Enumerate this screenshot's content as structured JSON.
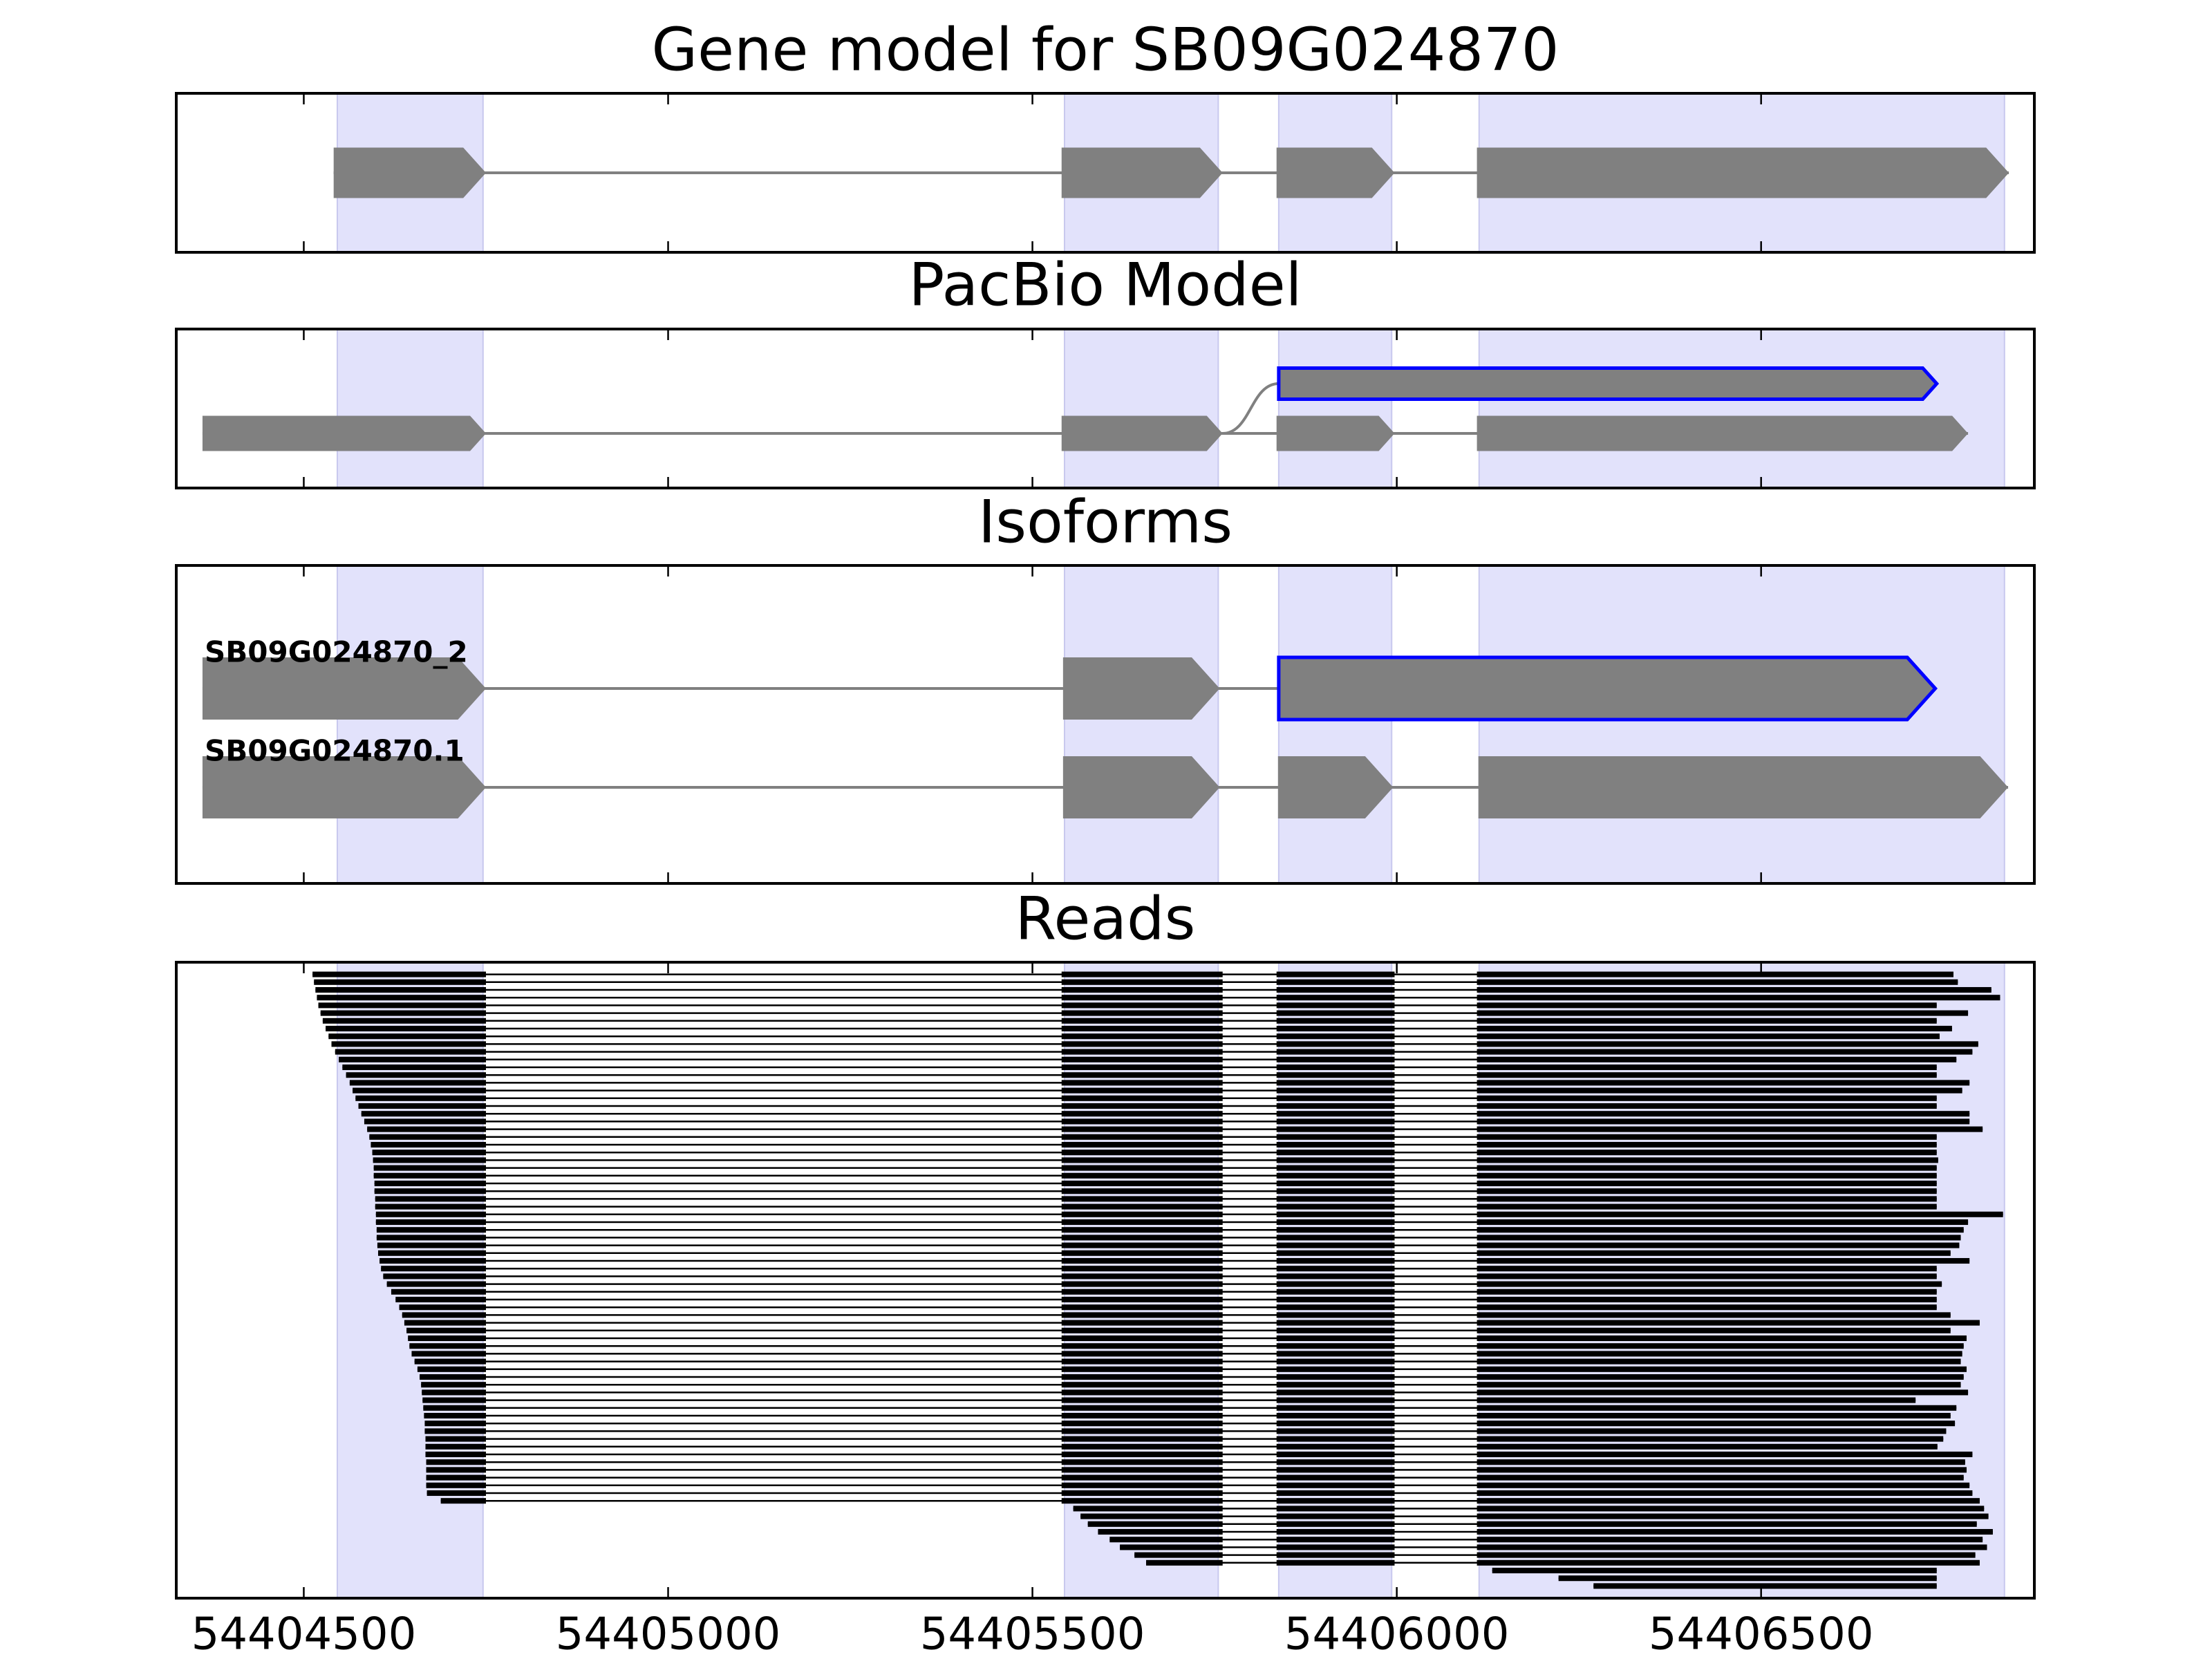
{
  "chart_data": [
    {
      "type": "gene-model",
      "title": "Gene model for SB09G024870",
      "exons": [
        [
          54404541,
          54404750
        ],
        [
          54405540,
          54405761
        ],
        [
          54405835,
          54405997
        ],
        [
          54406110,
          54406840
        ]
      ],
      "color": "#808080",
      "highlights": [
        [
          54404546,
          54404746
        ],
        [
          54405544,
          54405755
        ],
        [
          54405838,
          54405993
        ],
        [
          54406113,
          54406834
        ]
      ],
      "highlight_color": "#e2e2fb",
      "xlim": [
        54404325,
        54406875
      ],
      "xticks": [
        54404500,
        54405000,
        54405500,
        54406000,
        54406500
      ]
    },
    {
      "type": "isoforms",
      "title": "PacBio Model",
      "isoforms": [
        {
          "new_exons": [
            [
              54405838,
              54406741
            ]
          ]
        },
        {
          "exons": [
            [
              54404361,
              54404750
            ],
            [
              54405540,
              54405761
            ],
            [
              54405835,
              54405997
            ],
            [
              54406110,
              54406784
            ]
          ]
        }
      ],
      "color": "#808080",
      "outline_color": "#0000ff",
      "highlights": [
        [
          54404546,
          54404746
        ],
        [
          54405544,
          54405755
        ],
        [
          54405838,
          54405993
        ],
        [
          54406113,
          54406834
        ]
      ],
      "highlight_color": "#e2e2fb",
      "xlim": [
        54404325,
        54406875
      ],
      "xticks": [
        54404500,
        54405000,
        54405500,
        54406000,
        54406500
      ]
    },
    {
      "type": "isoforms",
      "title": "Isoforms",
      "isoforms": [
        {
          "name": "SB09G024870_2",
          "exons": [
            [
              54404361,
              54404750
            ],
            [
              54405542,
              54405757
            ]
          ],
          "new_exons": [
            [
              54405838,
              54406739
            ]
          ]
        },
        {
          "name": "SB09G024870.1",
          "exons": [
            [
              54404361,
              54404750
            ],
            [
              54405542,
              54405757
            ],
            [
              54405837,
              54405995
            ],
            [
              54406112,
              54406839
            ]
          ]
        }
      ],
      "color": "#808080",
      "outline_color": "#0000ff",
      "highlights": [
        [
          54404546,
          54404746
        ],
        [
          54405544,
          54405755
        ],
        [
          54405838,
          54405993
        ],
        [
          54406113,
          54406834
        ]
      ],
      "highlight_color": "#e2e2fb",
      "xlim": [
        54404325,
        54406875
      ],
      "xticks": [
        54404500,
        54405000,
        54405500,
        54406000,
        54406500
      ]
    },
    {
      "type": "reads",
      "title": "Reads",
      "exons": [
        [
          54404541,
          54404750
        ],
        [
          54405540,
          54405761
        ],
        [
          54405835,
          54405997
        ],
        [
          54406110,
          54406840
        ]
      ],
      "read_starts": [
        54404512,
        54404514,
        54404516,
        54404518,
        54404520,
        54404523,
        54404526,
        54404530,
        54404534,
        54404538,
        54404543,
        54404548,
        54404553,
        54404558,
        54404563,
        54404567,
        54404571,
        54404575,
        54404579,
        54404583,
        54404587,
        54404590,
        54404592,
        54404594,
        54404595,
        54404596,
        54404596,
        54404597,
        54404597,
        54404598,
        54404598,
        54404599,
        54404599,
        54404600,
        54404600,
        54404601,
        54404602,
        54404604,
        54404606,
        54404609,
        54404614,
        54404620,
        54404626,
        54404631,
        54404635,
        54404638,
        54404641,
        54404643,
        54404645,
        54404648,
        54404652,
        54404656,
        54404659,
        54404661,
        54404662,
        54404663,
        54404664,
        54404665,
        54404666,
        54404666,
        54404667,
        54404667,
        54404667,
        54404668,
        54404668,
        54404668,
        54404668,
        54404669,
        54404688,
        54405556,
        54405566,
        54405576,
        54405590,
        54405606,
        54405620,
        54405640,
        54405656,
        54406131,
        54406222,
        54406270
      ],
      "read_ends": [
        54406764,
        54406770,
        54406816,
        54406828,
        54406741,
        54406784,
        54406741,
        54406762,
        54406745,
        54406798,
        54406790,
        54406768,
        54406741,
        54406741,
        54406786,
        54406776,
        54406741,
        54406741,
        54406786,
        54406786,
        54406804,
        54406741,
        54406741,
        54406741,
        54406743,
        54406741,
        54406741,
        54406741,
        54406741,
        54406741,
        54406741,
        54406832,
        54406784,
        54406778,
        54406774,
        54406772,
        54406760,
        54406786,
        54406741,
        54406741,
        54406748,
        54406741,
        54406741,
        54406741,
        54406760,
        54406800,
        54406760,
        54406782,
        54406778,
        54406776,
        54406774,
        54406782,
        54406778,
        54406774,
        54406784,
        54406712,
        54406768,
        54406760,
        54406766,
        54406754,
        54406750,
        54406742,
        54406790,
        54406780,
        54406782,
        54406778,
        54406786,
        54406790,
        54406800,
        54406806,
        54406812,
        54406796,
        54406818,
        54406804,
        54406810,
        54406794,
        54406800,
        54406741,
        54406741,
        54406741
      ],
      "color": "#000000",
      "highlights": [
        [
          54404546,
          54404746
        ],
        [
          54405544,
          54405755
        ],
        [
          54405838,
          54405993
        ],
        [
          54406113,
          54406834
        ]
      ],
      "highlight_color": "#e2e2fb",
      "xlim": [
        54404325,
        54406875
      ],
      "xticks": [
        54404500,
        54405000,
        54405500,
        54406000,
        54406500
      ]
    }
  ]
}
